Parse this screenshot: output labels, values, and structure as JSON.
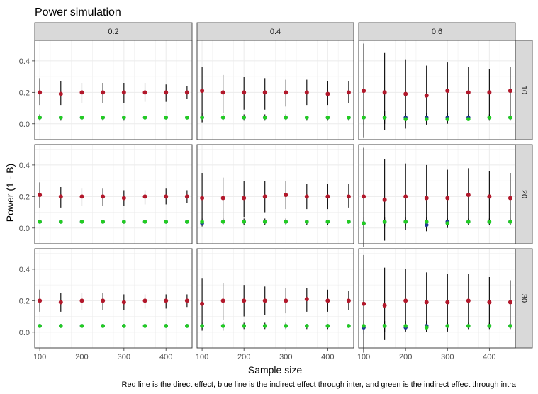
{
  "chart_data": {
    "type": "scatter",
    "title": "Power simulation",
    "xlabel": "Sample size",
    "ylabel": "Power (1 - B)",
    "caption": "Red line is the direct effect, blue line is the indirect effect through inter, and green is the indirect effect through intra",
    "facet_cols": [
      "0.2",
      "0.4",
      "0.6"
    ],
    "facet_rows": [
      "10",
      "20",
      "30"
    ],
    "x": [
      100,
      150,
      200,
      250,
      300,
      350,
      400,
      450
    ],
    "xlim": [
      88,
      462
    ],
    "ylim": [
      -0.1,
      0.53
    ],
    "x_ticks": [
      100,
      200,
      300,
      400
    ],
    "y_ticks": [
      0.0,
      0.2,
      0.4
    ],
    "y_tick_labels": [
      "0.0",
      "0.2",
      "0.4"
    ],
    "colors": {
      "direct": "#b2182b",
      "inter": "#1f3a93",
      "intra": "#22cc22",
      "whisker": "#000000",
      "strip_bg": "#d9d9d9",
      "grid": "#ebebeb"
    },
    "panels": [
      {
        "row": 0,
        "col": 0,
        "direct": [
          0.2,
          0.19,
          0.2,
          0.2,
          0.2,
          0.2,
          0.2,
          0.2
        ],
        "direct_lo": [
          0.12,
          0.12,
          0.13,
          0.13,
          0.13,
          0.14,
          0.14,
          0.16
        ],
        "direct_hi": [
          0.29,
          0.27,
          0.26,
          0.26,
          0.26,
          0.26,
          0.25,
          0.24
        ],
        "inter": [
          0.04,
          0.04,
          0.04,
          0.04,
          0.04,
          0.04,
          0.04,
          0.04
        ],
        "inter_lo": [
          0.02,
          0.02,
          0.02,
          0.02,
          0.02,
          0.03,
          0.03,
          0.03
        ],
        "inter_hi": [
          0.06,
          0.05,
          0.05,
          0.05,
          0.05,
          0.05,
          0.05,
          0.05
        ],
        "intra": [
          0.04,
          0.04,
          0.04,
          0.04,
          0.04,
          0.04,
          0.04,
          0.04
        ]
      },
      {
        "row": 0,
        "col": 1,
        "direct": [
          0.21,
          0.2,
          0.2,
          0.2,
          0.2,
          0.2,
          0.19,
          0.2
        ],
        "direct_lo": [
          0.01,
          0.07,
          0.09,
          0.09,
          0.11,
          0.12,
          0.12,
          0.13
        ],
        "direct_hi": [
          0.36,
          0.31,
          0.3,
          0.29,
          0.28,
          0.28,
          0.27,
          0.27
        ],
        "inter": [
          0.04,
          0.04,
          0.04,
          0.04,
          0.04,
          0.04,
          0.04,
          0.04
        ],
        "inter_lo": [
          0.01,
          0.02,
          0.02,
          0.02,
          0.02,
          0.02,
          0.02,
          0.02
        ],
        "inter_hi": [
          0.07,
          0.06,
          0.06,
          0.06,
          0.06,
          0.05,
          0.05,
          0.05
        ],
        "intra": [
          0.04,
          0.04,
          0.04,
          0.04,
          0.04,
          0.04,
          0.04,
          0.04
        ]
      },
      {
        "row": 0,
        "col": 2,
        "direct": [
          0.21,
          0.2,
          0.19,
          0.18,
          0.21,
          0.2,
          0.2,
          0.21
        ],
        "direct_lo": [
          -0.09,
          -0.04,
          -0.03,
          -0.01,
          0.0,
          0.03,
          0.04,
          0.05
        ],
        "direct_hi": [
          0.51,
          0.45,
          0.41,
          0.37,
          0.39,
          0.36,
          0.35,
          0.36
        ],
        "inter": [
          0.04,
          0.04,
          0.04,
          0.04,
          0.04,
          0.04,
          0.04,
          0.04
        ],
        "inter_lo": [
          -0.01,
          0.0,
          0.01,
          0.0,
          0.01,
          0.02,
          0.02,
          0.02
        ],
        "inter_hi": [
          0.09,
          0.08,
          0.07,
          0.07,
          0.07,
          0.06,
          0.06,
          0.06
        ],
        "intra": [
          0.04,
          0.04,
          0.03,
          0.03,
          0.03,
          0.03,
          0.04,
          0.04
        ]
      },
      {
        "row": 1,
        "col": 0,
        "direct": [
          0.21,
          0.2,
          0.2,
          0.2,
          0.19,
          0.2,
          0.2,
          0.2
        ],
        "direct_lo": [
          0.13,
          0.13,
          0.14,
          0.14,
          0.14,
          0.15,
          0.15,
          0.16
        ],
        "direct_hi": [
          0.29,
          0.26,
          0.25,
          0.25,
          0.24,
          0.24,
          0.25,
          0.24
        ],
        "inter": [
          0.04,
          0.04,
          0.04,
          0.04,
          0.04,
          0.04,
          0.04,
          0.04
        ],
        "inter_lo": [
          0.03,
          0.03,
          0.03,
          0.03,
          0.03,
          0.03,
          0.03,
          0.03
        ],
        "inter_hi": [
          0.05,
          0.05,
          0.05,
          0.05,
          0.05,
          0.05,
          0.05,
          0.05
        ],
        "intra": [
          0.04,
          0.04,
          0.04,
          0.04,
          0.04,
          0.04,
          0.04,
          0.04
        ]
      },
      {
        "row": 1,
        "col": 1,
        "direct": [
          0.19,
          0.19,
          0.19,
          0.2,
          0.21,
          0.2,
          0.2,
          0.2
        ],
        "direct_lo": [
          0.02,
          0.04,
          0.07,
          0.1,
          0.12,
          0.12,
          0.12,
          0.13
        ],
        "direct_hi": [
          0.35,
          0.32,
          0.3,
          0.3,
          0.3,
          0.28,
          0.28,
          0.28
        ],
        "inter": [
          0.03,
          0.04,
          0.04,
          0.04,
          0.04,
          0.04,
          0.04,
          0.04
        ],
        "inter_lo": [
          0.01,
          0.02,
          0.02,
          0.02,
          0.02,
          0.02,
          0.02,
          0.03
        ],
        "inter_hi": [
          0.06,
          0.06,
          0.06,
          0.06,
          0.06,
          0.05,
          0.05,
          0.05
        ],
        "intra": [
          0.04,
          0.04,
          0.04,
          0.04,
          0.04,
          0.04,
          0.04,
          0.04
        ]
      },
      {
        "row": 1,
        "col": 2,
        "direct": [
          0.2,
          0.18,
          0.2,
          0.19,
          0.19,
          0.21,
          0.2,
          0.19
        ],
        "direct_lo": [
          -0.12,
          -0.08,
          -0.01,
          -0.02,
          0.0,
          0.04,
          0.04,
          0.05
        ],
        "direct_hi": [
          0.51,
          0.44,
          0.41,
          0.4,
          0.37,
          0.38,
          0.36,
          0.35
        ],
        "inter": [
          0.03,
          0.04,
          0.04,
          0.02,
          0.04,
          0.04,
          0.04,
          0.04
        ],
        "inter_lo": [
          0.0,
          0.01,
          0.01,
          -0.02,
          0.01,
          0.02,
          0.02,
          0.02
        ],
        "inter_hi": [
          0.07,
          0.07,
          0.07,
          0.07,
          0.06,
          0.06,
          0.06,
          0.06
        ],
        "intra": [
          0.03,
          0.04,
          0.04,
          0.04,
          0.03,
          0.04,
          0.04,
          0.04
        ]
      },
      {
        "row": 2,
        "col": 0,
        "direct": [
          0.2,
          0.19,
          0.2,
          0.2,
          0.19,
          0.2,
          0.2,
          0.2
        ],
        "direct_lo": [
          0.13,
          0.13,
          0.14,
          0.14,
          0.14,
          0.15,
          0.15,
          0.16
        ],
        "direct_hi": [
          0.27,
          0.25,
          0.25,
          0.25,
          0.24,
          0.24,
          0.24,
          0.24
        ],
        "inter": [
          0.04,
          0.04,
          0.04,
          0.04,
          0.04,
          0.04,
          0.04,
          0.04
        ],
        "inter_lo": [
          0.03,
          0.03,
          0.03,
          0.03,
          0.03,
          0.03,
          0.03,
          0.03
        ],
        "inter_hi": [
          0.05,
          0.05,
          0.05,
          0.05,
          0.05,
          0.05,
          0.05,
          0.05
        ],
        "intra": [
          0.04,
          0.04,
          0.04,
          0.04,
          0.04,
          0.04,
          0.04,
          0.04
        ]
      },
      {
        "row": 2,
        "col": 1,
        "direct": [
          0.18,
          0.2,
          0.2,
          0.2,
          0.2,
          0.21,
          0.2,
          0.2
        ],
        "direct_lo": [
          0.02,
          0.08,
          0.1,
          0.11,
          0.12,
          0.13,
          0.13,
          0.14
        ],
        "direct_hi": [
          0.34,
          0.31,
          0.3,
          0.29,
          0.28,
          0.28,
          0.27,
          0.26
        ],
        "inter": [
          0.04,
          0.04,
          0.04,
          0.04,
          0.04,
          0.04,
          0.04,
          0.04
        ],
        "inter_lo": [
          0.01,
          0.01,
          0.02,
          0.02,
          0.02,
          0.02,
          0.02,
          0.03
        ],
        "inter_hi": [
          0.06,
          0.06,
          0.06,
          0.06,
          0.06,
          0.05,
          0.05,
          0.05
        ],
        "intra": [
          0.04,
          0.04,
          0.04,
          0.04,
          0.04,
          0.04,
          0.04,
          0.04
        ]
      },
      {
        "row": 2,
        "col": 2,
        "direct": [
          0.18,
          0.17,
          0.2,
          0.19,
          0.19,
          0.2,
          0.19,
          0.19
        ],
        "direct_lo": [
          -0.13,
          -0.05,
          0.0,
          0.0,
          0.0,
          0.02,
          0.03,
          0.05
        ],
        "direct_hi": [
          0.49,
          0.41,
          0.4,
          0.38,
          0.37,
          0.37,
          0.35,
          0.33
        ],
        "inter": [
          0.03,
          0.04,
          0.03,
          0.04,
          0.04,
          0.04,
          0.04,
          0.04
        ],
        "inter_lo": [
          -0.01,
          0.0,
          0.01,
          0.0,
          0.01,
          0.02,
          0.02,
          0.02
        ],
        "inter_hi": [
          0.07,
          0.07,
          0.07,
          0.07,
          0.06,
          0.06,
          0.06,
          0.06
        ],
        "intra": [
          0.04,
          0.04,
          0.04,
          0.03,
          0.04,
          0.04,
          0.04,
          0.04
        ]
      }
    ]
  }
}
